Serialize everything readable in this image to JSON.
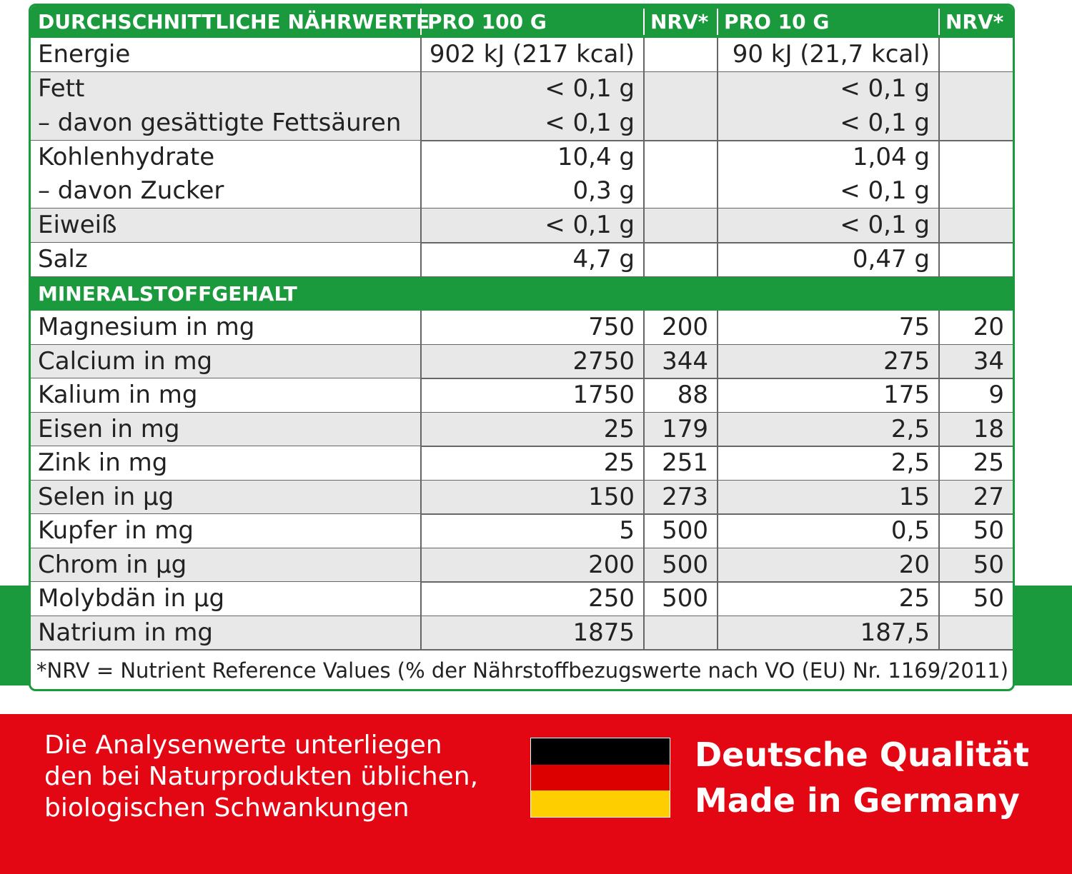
{
  "table": {
    "header": [
      "DURCHSCHNITTLICHE NÄHRWERTE",
      "PRO 100 G",
      "NRV*",
      "PRO 10 G",
      "NRV*"
    ],
    "groups": [
      {
        "lines": [
          {
            "label": "Energie",
            "per100": "902 kJ (217 kcal)",
            "per10": "90 kJ (21,7 kcal)"
          }
        ]
      },
      {
        "lines": [
          {
            "label": "Fett",
            "per100": "< 0,1 g",
            "per10": "< 0,1 g"
          },
          {
            "label": "– davon gesättigte Fettsäuren",
            "per100": "< 0,1 g",
            "per10": "< 0,1 g"
          }
        ]
      },
      {
        "lines": [
          {
            "label": "Kohlenhydrate",
            "per100": "10,4 g",
            "per10": "1,04 g"
          },
          {
            "label": "– davon Zucker",
            "per100": "0,3 g",
            "per10": "< 0,1 g"
          }
        ]
      },
      {
        "lines": [
          {
            "label": "Eiweiß",
            "per100": "< 0,1 g",
            "per10": "< 0,1 g"
          }
        ]
      },
      {
        "lines": [
          {
            "label": "Salz",
            "per100": "4,7 g",
            "per10": "0,47 g"
          }
        ]
      }
    ],
    "mineral_title": "MINERALSTOFFGEHALT",
    "minerals": [
      {
        "label": "Magnesium in mg",
        "per100": "750",
        "nrv100": "200",
        "per10": "75",
        "nrv10": "20"
      },
      {
        "label": "Calcium in mg",
        "per100": "2750",
        "nrv100": "344",
        "per10": "275",
        "nrv10": "34"
      },
      {
        "label": "Kalium in mg",
        "per100": "1750",
        "nrv100": "88",
        "per10": "175",
        "nrv10": "9"
      },
      {
        "label": "Eisen in mg",
        "per100": "25",
        "nrv100": "179",
        "per10": "2,5",
        "nrv10": "18"
      },
      {
        "label": "Zink in mg",
        "per100": "25",
        "nrv100": "251",
        "per10": "2,5",
        "nrv10": "25"
      },
      {
        "label": "Selen in µg",
        "per100": "150",
        "nrv100": "273",
        "per10": "15",
        "nrv10": "27"
      },
      {
        "label": "Kupfer in mg",
        "per100": "5",
        "nrv100": "500",
        "per10": "0,5",
        "nrv10": "50"
      },
      {
        "label": "Chrom in µg",
        "per100": "200",
        "nrv100": "500",
        "per10": "20",
        "nrv10": "50"
      },
      {
        "label": "Molybdän in µg",
        "per100": "250",
        "nrv100": "500",
        "per10": "25",
        "nrv10": "50"
      },
      {
        "label": "Natrium in mg",
        "per100": "1875",
        "per10": "187,5"
      }
    ],
    "footnote": "*NRV = Nutrient Reference Values (% der Nährstoffbezugswerte nach VO (EU) Nr. 1169/2011)"
  },
  "footer": {
    "note": [
      "Die Analysenwerte unterliegen",
      "den bei Naturprodukten üblichen,",
      "biologischen Schwankungen"
    ],
    "quality": [
      "Deutsche Qualität",
      "Made in Germany"
    ]
  }
}
